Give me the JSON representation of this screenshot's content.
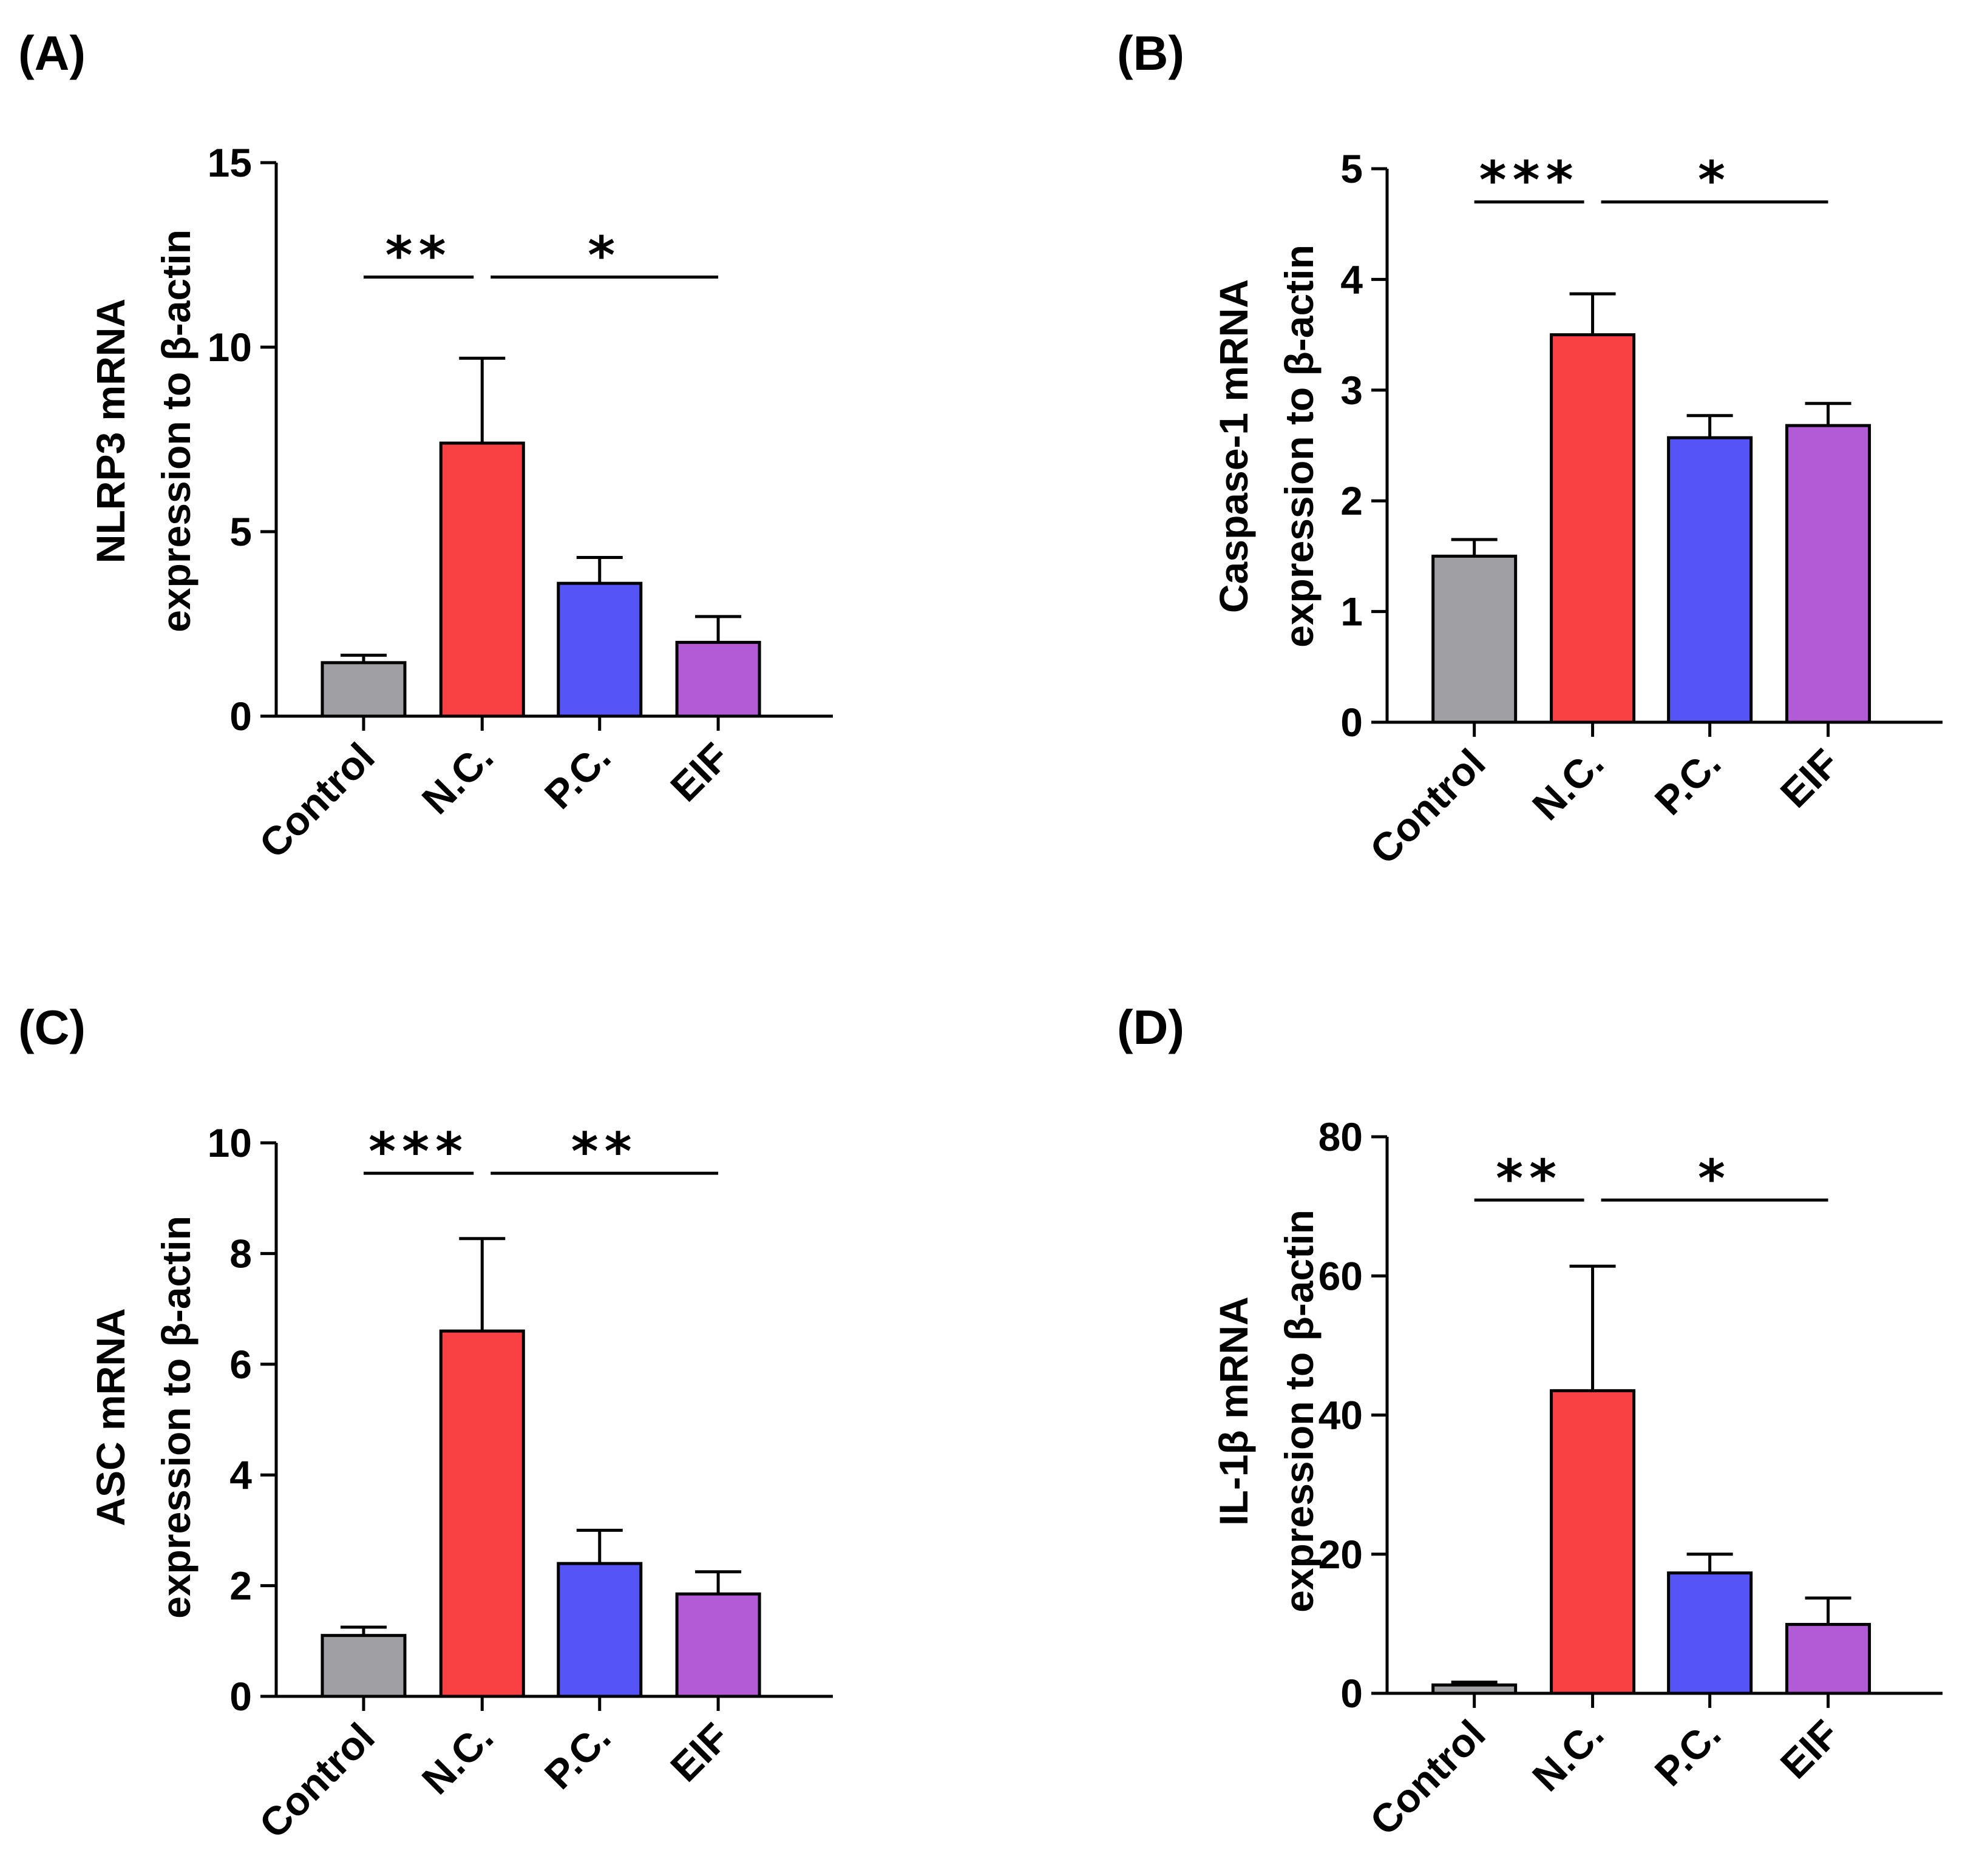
{
  "chart_data": [
    {
      "type": "bar",
      "panel_label": "(A)",
      "ylabel_line1": "NLRP3 mRNA",
      "ylabel_line2": "expression to β-actin",
      "categories": [
        "Control",
        "N.C.",
        "P.C.",
        "EIF"
      ],
      "values": [
        1.45,
        7.4,
        3.6,
        2.0
      ],
      "errors": [
        0.2,
        2.3,
        0.7,
        0.7
      ],
      "colors": [
        "#a0a0a4",
        "#f94144",
        "#5555f7",
        "#b35ad6"
      ],
      "ylim": [
        0,
        15
      ],
      "yticks": [
        "0",
        "5",
        "10",
        "15"
      ],
      "significance": [
        {
          "from": 0,
          "to": 1,
          "y": 11.9,
          "label": "**"
        },
        {
          "from": 1,
          "to": 3,
          "y": 11.9,
          "label": "*"
        }
      ]
    },
    {
      "type": "bar",
      "panel_label": "(B)",
      "ylabel_line1": "Caspase-1 mRNA",
      "ylabel_line2": "expression to β-actin",
      "categories": [
        "Control",
        "N.C.",
        "P.C.",
        "EIF"
      ],
      "values": [
        1.5,
        3.5,
        2.57,
        2.68
      ],
      "errors": [
        0.15,
        0.37,
        0.2,
        0.2
      ],
      "colors": [
        "#a0a0a4",
        "#f94144",
        "#5555f7",
        "#b35ad6"
      ],
      "ylim": [
        0,
        5
      ],
      "yticks": [
        "0",
        "1",
        "2",
        "3",
        "4",
        "5"
      ],
      "significance": [
        {
          "from": 0,
          "to": 1,
          "y": 4.7,
          "label": "***"
        },
        {
          "from": 1,
          "to": 3,
          "y": 4.7,
          "label": "*"
        }
      ]
    },
    {
      "type": "bar",
      "panel_label": "(C)",
      "ylabel_line1": "ASC mRNA",
      "ylabel_line2": "expression to β-actin",
      "categories": [
        "Control",
        "N.C.",
        "P.C.",
        "EIF"
      ],
      "values": [
        1.1,
        6.6,
        2.4,
        1.85
      ],
      "errors": [
        0.15,
        1.67,
        0.6,
        0.4
      ],
      "colors": [
        "#a0a0a4",
        "#f94144",
        "#5555f7",
        "#b35ad6"
      ],
      "ylim": [
        0,
        10
      ],
      "yticks": [
        "0",
        "2",
        "4",
        "6",
        "8",
        "10"
      ],
      "significance": [
        {
          "from": 0,
          "to": 1,
          "y": 9.45,
          "label": "***"
        },
        {
          "from": 1,
          "to": 3,
          "y": 9.45,
          "label": "**"
        }
      ]
    },
    {
      "type": "bar",
      "panel_label": "(D)",
      "ylabel_line1": "IL-1β mRNA",
      "ylabel_line2": "expression to β-actin",
      "categories": [
        "Control",
        "N.C.",
        "P.C.",
        "EIF"
      ],
      "values": [
        1.2,
        43.5,
        17.3,
        9.9
      ],
      "errors": [
        0.4,
        17.9,
        2.7,
        3.8
      ],
      "colors": [
        "#a0a0a4",
        "#f94144",
        "#5555f7",
        "#b35ad6"
      ],
      "ylim": [
        0,
        80
      ],
      "yticks": [
        "0",
        "20",
        "40",
        "60",
        "80"
      ],
      "significance": [
        {
          "from": 0,
          "to": 1,
          "y": 70.9,
          "label": "**"
        },
        {
          "from": 1,
          "to": 3,
          "y": 70.9,
          "label": "*"
        }
      ]
    }
  ]
}
